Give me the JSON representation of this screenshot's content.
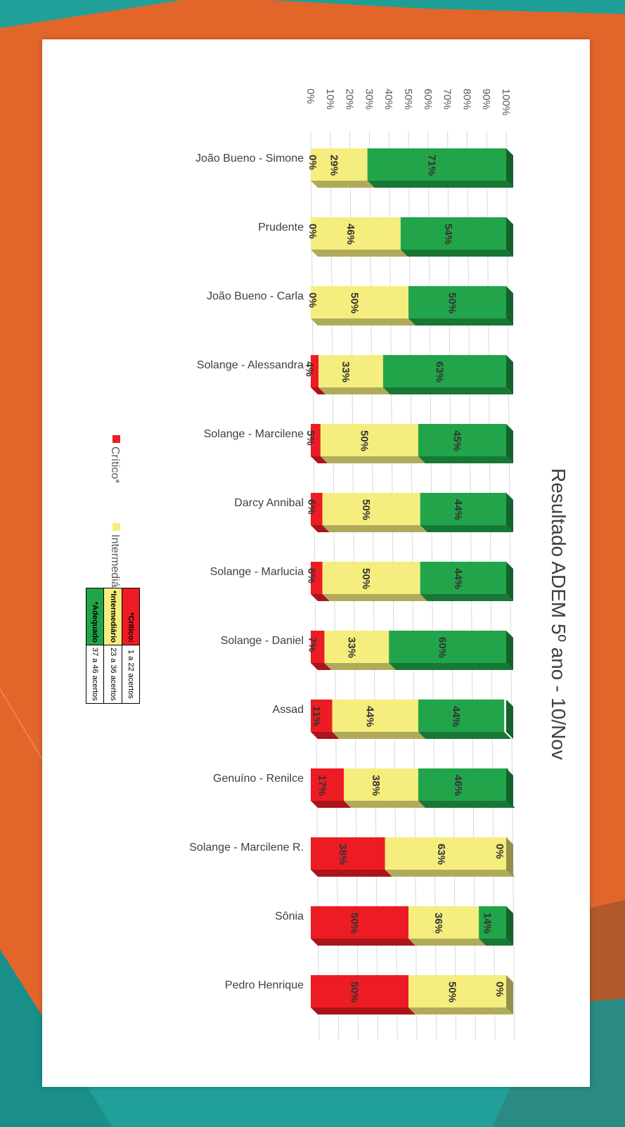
{
  "colors": {
    "critico": "#ed1c24",
    "intermediario": "#f5ee7e",
    "adequado": "#22a54a",
    "background": "#e2662a",
    "teal": "#21a09a"
  },
  "chart_data": {
    "type": "bar",
    "stacked": true,
    "percent": true,
    "title": "Resultado ADEM 5º ano - 10/Nov",
    "categories": [
      "João Bueno - Simone",
      "Prudente",
      "João Bueno - Carla",
      "Solange - Alessandra",
      "Solange - Marcilene",
      "Darcy Annibal",
      "Solange - Marlucia",
      "Solange - Daniel",
      "Assad",
      "Genuíno - Renilce",
      "Solange - Marcilene R.",
      "Sônia",
      "Pedro Henrique"
    ],
    "series": [
      {
        "name": "Crítico*",
        "color": "#ed1c24",
        "values": [
          0,
          0,
          0,
          4,
          5,
          6,
          6,
          7,
          11,
          17,
          38,
          50,
          50
        ]
      },
      {
        "name": "Intermediário*",
        "color": "#f5ee7e",
        "values": [
          29,
          46,
          50,
          33,
          50,
          50,
          50,
          33,
          44,
          38,
          63,
          36,
          50
        ]
      },
      {
        "name": "Adequado*",
        "color": "#22a54a",
        "values": [
          71,
          54,
          50,
          63,
          45,
          44,
          44,
          60,
          44,
          46,
          0,
          14,
          0
        ]
      }
    ],
    "value_ticks": [
      "0%",
      "10%",
      "20%",
      "30%",
      "40%",
      "50%",
      "60%",
      "70%",
      "80%",
      "90%",
      "100%"
    ],
    "ylim": [
      0,
      100
    ],
    "grid": true,
    "legend": "left"
  },
  "key_table": {
    "rows": [
      {
        "label": "*Crítico:",
        "value": "1 a 22 acertos",
        "color": "#ed1c24"
      },
      {
        "label": "*Intermediário",
        "value": "23 a 36 acertos",
        "color": "#f5ee7e"
      },
      {
        "label": "*Adequado",
        "value": "37 a 46 acertos",
        "color": "#22a54a"
      }
    ]
  }
}
